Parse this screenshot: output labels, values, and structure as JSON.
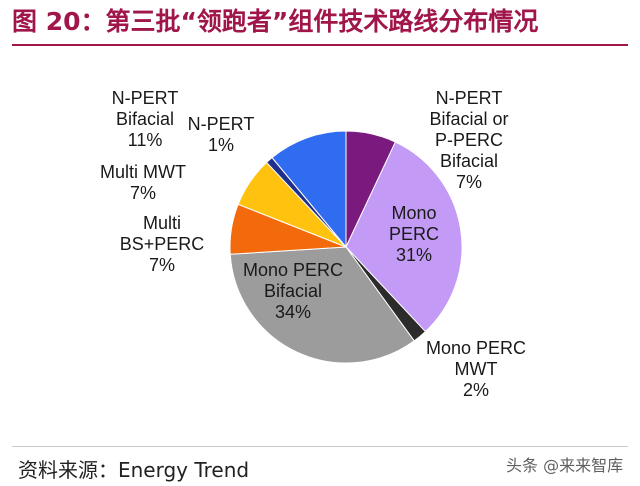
{
  "header": {
    "title": "图 20：第三批“领跑者”组件技术路线分布情况"
  },
  "footer": {
    "source": "资料来源：Energy Trend",
    "watermark": "头条 @来来智库"
  },
  "chart_data": {
    "type": "pie",
    "title": "",
    "slices": [
      {
        "label_lines": [
          "N-PERT",
          "Bifacial or",
          "P-PERC",
          "Bifacial",
          "7%"
        ],
        "value": 7,
        "color": "#7b1a7e"
      },
      {
        "label_lines": [
          "Mono",
          "PERC",
          "31%"
        ],
        "value": 31,
        "color": "#c39af5"
      },
      {
        "label_lines": [
          "Mono PERC",
          "MWT",
          "2%"
        ],
        "value": 2,
        "color": "#2b2b2b"
      },
      {
        "label_lines": [
          "Mono PERC",
          "Bifacial",
          "34%"
        ],
        "value": 34,
        "color": "#9c9c9c"
      },
      {
        "label_lines": [
          "Multi",
          "BS+PERC",
          "7%"
        ],
        "value": 7,
        "color": "#f26a0c"
      },
      {
        "label_lines": [
          "Multi  MWT",
          "7%"
        ],
        "value": 7,
        "color": "#ffc20e"
      },
      {
        "label_lines": [
          "N-PERT",
          "1%"
        ],
        "value": 1,
        "color": "#1f2f8c"
      },
      {
        "label_lines": [
          "N-PERT",
          "Bifacial",
          "11%"
        ],
        "value": 11,
        "color": "#2f6cf0"
      }
    ]
  }
}
